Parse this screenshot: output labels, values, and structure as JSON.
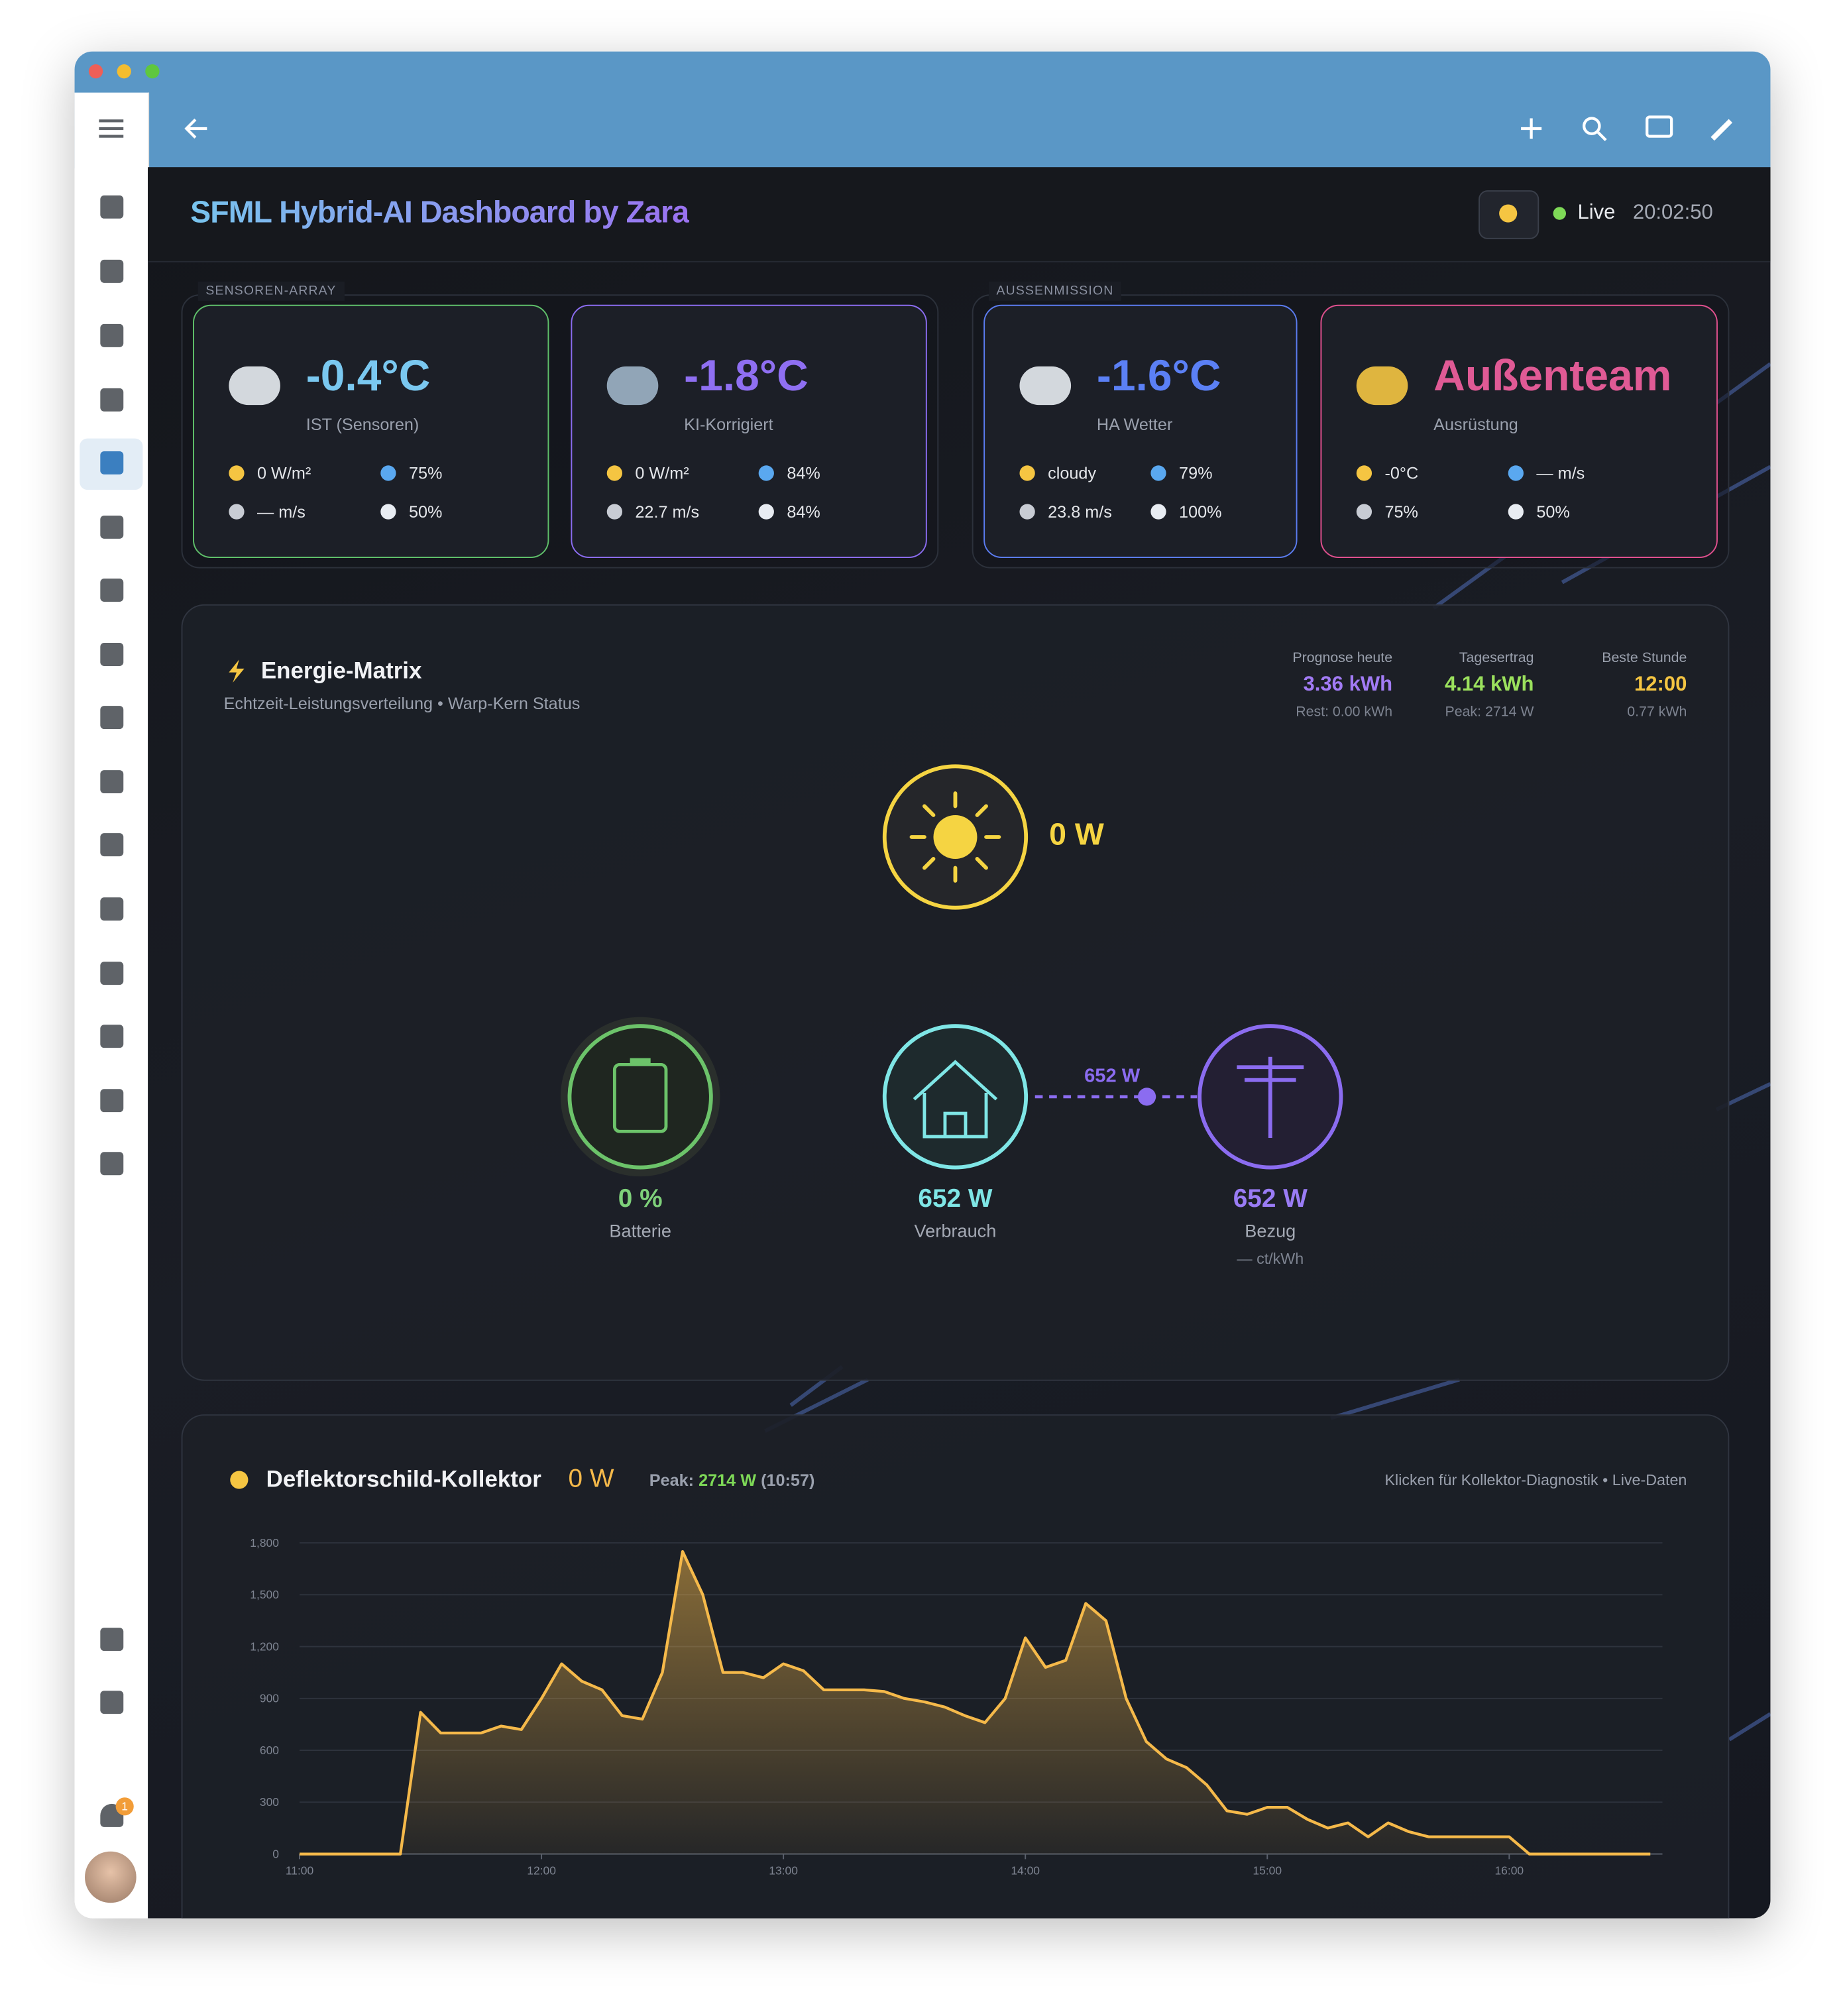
{
  "dashboard": {
    "title": "SFML Hybrid-AI Dashboard by Zara",
    "status": "Live",
    "time": "20:02:50"
  },
  "sidebar": {
    "badge": "1"
  },
  "groups": [
    {
      "label": "SENSOREN-ARRAY"
    },
    {
      "label": "AUSSENMISSION"
    }
  ],
  "cards": [
    {
      "value": "-0.4°C",
      "label": "IST (Sensoren)",
      "stats": [
        "0 W/m²",
        "75%",
        "— m/s",
        "50%"
      ]
    },
    {
      "value": "-1.8°C",
      "label": "KI-Korrigiert",
      "stats": [
        "0 W/m²",
        "84%",
        "22.7 m/s",
        "84%"
      ]
    },
    {
      "value": "-1.6°C",
      "label": "HA Wetter",
      "stats": [
        "cloudy",
        "79%",
        "23.8 m/s",
        "100%"
      ]
    },
    {
      "value": "Außenteam",
      "label": "Ausrüstung",
      "stats": [
        "-0°C",
        "— m/s",
        "75%",
        "50%"
      ]
    }
  ],
  "energy": {
    "title": "Energie-Matrix",
    "subtitle": "Echtzeit-Leistungsverteilung • Warp-Kern Status",
    "summary": [
      {
        "label": "Prognose heute",
        "value": "3.36 kWh",
        "note": "Rest: 0.00 kWh"
      },
      {
        "label": "Tagesertrag",
        "value": "4.14 kWh",
        "note": "Peak: 2714 W"
      },
      {
        "label": "Beste Stunde",
        "value": "12:00",
        "note": "0.77 kWh"
      }
    ],
    "solar": "0 W",
    "battery": {
      "value": "0 %",
      "label": "Batterie"
    },
    "house": {
      "value": "652 W",
      "label": "Verbrauch"
    },
    "grid": {
      "value": "652 W",
      "label": "Bezug",
      "note": "— ct/kWh"
    },
    "flow": "652 W"
  },
  "chart_data": {
    "type": "area",
    "title": "Deflektorschild-Kollektor",
    "current": "0 W",
    "peak_label": "Peak:",
    "peak": "2714 W",
    "peak_time": "(10:57)",
    "hint": "Klicken für Kollektor-Diagnostik • Live-Daten",
    "x": [
      "11:00",
      "11:05",
      "11:10",
      "11:15",
      "11:20",
      "11:25",
      "11:30",
      "11:35",
      "11:40",
      "11:45",
      "11:50",
      "11:55",
      "12:00",
      "12:05",
      "12:10",
      "12:15",
      "12:20",
      "12:25",
      "12:30",
      "12:35",
      "12:40",
      "12:45",
      "12:50",
      "12:55",
      "13:00",
      "13:05",
      "13:10",
      "13:15",
      "13:20",
      "13:25",
      "13:30",
      "13:35",
      "13:40",
      "13:45",
      "13:50",
      "13:55",
      "14:00",
      "14:05",
      "14:10",
      "14:15",
      "14:20",
      "14:25",
      "14:30",
      "14:35",
      "14:40",
      "14:45",
      "14:50",
      "14:55",
      "15:00",
      "15:05",
      "15:10",
      "15:15",
      "15:20",
      "15:25",
      "15:30",
      "15:35",
      "15:40",
      "15:45",
      "15:50",
      "15:55",
      "16:00",
      "16:05",
      "16:10",
      "16:15",
      "16:20",
      "16:25",
      "16:30",
      "16:35"
    ],
    "series": [
      {
        "color": "#f5b94a",
        "values": [
          0,
          0,
          0,
          0,
          0,
          0,
          820,
          700,
          700,
          700,
          740,
          720,
          900,
          1100,
          1000,
          950,
          800,
          780,
          1050,
          1750,
          1500,
          1050,
          1050,
          1020,
          1100,
          1060,
          950,
          950,
          950,
          940,
          900,
          880,
          850,
          800,
          760,
          900,
          1250,
          1080,
          1120,
          1450,
          1350,
          900,
          650,
          550,
          500,
          400,
          250,
          230,
          270,
          270,
          200,
          150,
          180,
          100,
          180,
          130,
          100,
          100,
          100,
          100,
          100,
          0,
          0,
          0,
          0,
          0,
          0,
          0
        ]
      }
    ],
    "xlim": [
      "11:00",
      "16:38"
    ],
    "xticks": [
      "11:00",
      "12:00",
      "13:00",
      "14:00",
      "15:00",
      "16:00"
    ],
    "ylim": [
      0,
      1800
    ],
    "yticks": [
      0,
      300,
      600,
      900,
      {
        "value": 1200,
        "label": "1,200"
      },
      {
        "value": 1500,
        "label": "1,500"
      },
      {
        "value": 1800,
        "label": "1,800"
      }
    ],
    "grid": true
  }
}
